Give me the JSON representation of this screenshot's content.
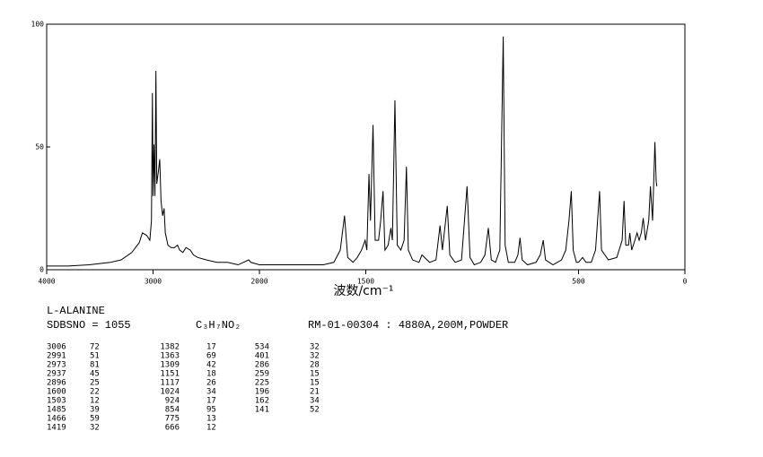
{
  "chart_data": {
    "type": "line",
    "x_label": "波数/cm⁻¹",
    "x": [
      4000,
      3800,
      3600,
      3400,
      3300,
      3200,
      3130,
      3100,
      3060,
      3030,
      3015,
      3006,
      3000,
      2991,
      2982,
      2973,
      2965,
      2950,
      2937,
      2925,
      2910,
      2896,
      2885,
      2860,
      2830,
      2800,
      2770,
      2750,
      2720,
      2690,
      2650,
      2620,
      2580,
      2500,
      2400,
      2300,
      2250,
      2200,
      2100,
      2080,
      2000,
      1900,
      1800,
      1700,
      1650,
      1620,
      1600,
      1585,
      1560,
      1540,
      1520,
      1503,
      1495,
      1485,
      1478,
      1466,
      1456,
      1440,
      1430,
      1419,
      1410,
      1395,
      1382,
      1375,
      1363,
      1352,
      1335,
      1320,
      1309,
      1300,
      1280,
      1250,
      1236,
      1200,
      1170,
      1151,
      1140,
      1117,
      1105,
      1080,
      1050,
      1024,
      1010,
      990,
      960,
      940,
      924,
      910,
      890,
      870,
      854,
      845,
      830,
      800,
      785,
      775,
      765,
      740,
      700,
      680,
      666,
      655,
      620,
      580,
      560,
      545,
      534,
      525,
      510,
      500,
      481,
      465,
      440,
      420,
      401,
      392,
      360,
      320,
      295,
      286,
      278,
      265,
      259,
      250,
      235,
      225,
      215,
      205,
      196,
      185,
      170,
      162,
      152,
      141,
      135,
      132
    ],
    "values": [
      1.5,
      1.5,
      2,
      3,
      4,
      7,
      11,
      15,
      14,
      12,
      20,
      72,
      30,
      51,
      30,
      81,
      35,
      40,
      45,
      28,
      22,
      25,
      15,
      10,
      9,
      9,
      10,
      8,
      7,
      9,
      8,
      6,
      5,
      4,
      3,
      3,
      2.5,
      2,
      4,
      3,
      2,
      2,
      2,
      2,
      3,
      8,
      22,
      5,
      3,
      5,
      8,
      12,
      8,
      39,
      20,
      59,
      12,
      12,
      20,
      32,
      8,
      10,
      17,
      12,
      69,
      10,
      8,
      12,
      42,
      8,
      4,
      3,
      6,
      3,
      4,
      18,
      8,
      26,
      6,
      3,
      4,
      34,
      5,
      2,
      3,
      6,
      17,
      4,
      3,
      8,
      95,
      10,
      3,
      3,
      6,
      13,
      4,
      2,
      3,
      6,
      12,
      4,
      2,
      4,
      8,
      20,
      32,
      8,
      3,
      3,
      5,
      3,
      3,
      8,
      32,
      8,
      4,
      5,
      12,
      28,
      10,
      10,
      15,
      8,
      12,
      15,
      12,
      15,
      21,
      12,
      20,
      34,
      20,
      52,
      36,
      34
    ],
    "color": "#000000",
    "xlim": [
      4000,
      0
    ],
    "xticks": [
      4000,
      3000,
      2000,
      1500,
      500,
      0
    ],
    "x_scale_break": 2000,
    "x_scale_ratio": 2,
    "ylim": [
      0,
      100
    ],
    "yticks": [
      0,
      50,
      100
    ]
  },
  "sample": {
    "name": "L-ALANINE",
    "sdbs_no": "SDBSNO = 1055",
    "formula": "C₃H₇NO₂",
    "measurement": "RM-01-00304 : 4880A,200M,POWDER"
  },
  "peak_table": {
    "columns": [
      [
        [
          3006,
          72
        ],
        [
          2991,
          51
        ],
        [
          2973,
          81
        ],
        [
          2937,
          45
        ],
        [
          2896,
          25
        ],
        [
          1600,
          22
        ],
        [
          1503,
          12
        ],
        [
          1485,
          39
        ],
        [
          1466,
          59
        ],
        [
          1419,
          32
        ]
      ],
      [
        [
          1382,
          17
        ],
        [
          1363,
          69
        ],
        [
          1309,
          42
        ],
        [
          1151,
          18
        ],
        [
          1117,
          26
        ],
        [
          1024,
          34
        ],
        [
          924,
          17
        ],
        [
          854,
          95
        ],
        [
          775,
          13
        ],
        [
          666,
          12
        ]
      ],
      [
        [
          534,
          32
        ],
        [
          401,
          32
        ],
        [
          286,
          28
        ],
        [
          259,
          15
        ],
        [
          225,
          15
        ],
        [
          196,
          21
        ],
        [
          162,
          34
        ],
        [
          141,
          52
        ]
      ]
    ]
  }
}
